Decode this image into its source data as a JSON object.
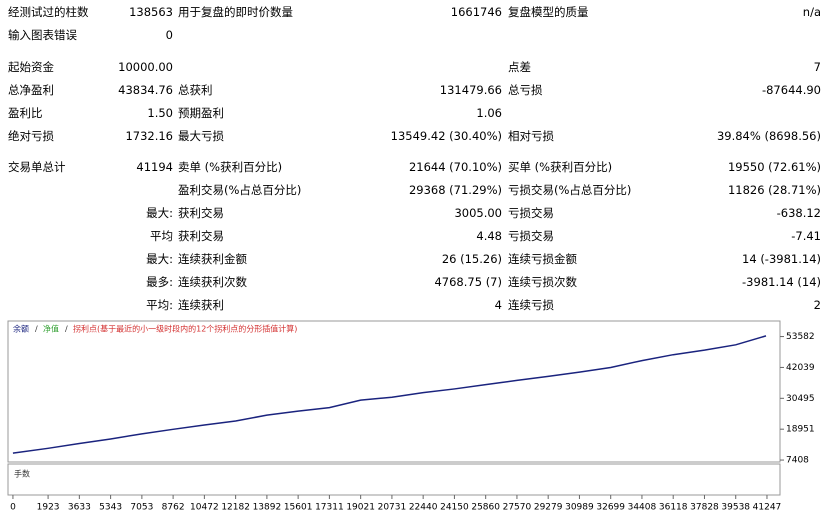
{
  "report": {
    "rows": [
      [
        "经测试过的柱数",
        "138563",
        "用于复盘的即时价数量",
        "1661746",
        "复盘模型的质量",
        "n/a"
      ],
      [
        "输入图表错误",
        "0",
        null,
        null,
        null,
        null
      ],
      [
        "起始资金",
        "10000.00",
        null,
        null,
        "点差",
        "7"
      ],
      [
        "总净盈利",
        "43834.76",
        "总获利",
        "131479.66",
        "总亏损",
        "-87644.90"
      ],
      [
        "盈利比",
        "1.50",
        "预期盈利",
        "1.06",
        null,
        null
      ],
      [
        "绝对亏损",
        "1732.16",
        "最大亏损",
        "13549.42 (30.40%)",
        "相对亏损",
        "39.84% (8698.56)"
      ],
      [
        "交易单总计",
        "41194",
        "卖单 (%获利百分比)",
        "21644 (70.10%)",
        "买单 (%获利百分比)",
        "19550 (72.61%)"
      ],
      [
        null,
        null,
        "盈利交易(%占总百分比)",
        "29368 (71.29%)",
        "亏损交易(%占总百分比)",
        "11826 (28.71%)"
      ],
      [
        null,
        "最大:",
        "获利交易",
        "3005.00",
        "亏损交易",
        "-638.12"
      ],
      [
        null,
        "平均",
        "获利交易",
        "4.48",
        "亏损交易",
        "-7.41"
      ],
      [
        null,
        "最大:",
        "连续获利金额",
        "26 (15.26)",
        "连续亏损金额",
        "14 (-3981.14)"
      ],
      [
        null,
        "最多:",
        "连续获利次数",
        "4768.75 (7)",
        "连续亏损次数",
        "-3981.14 (14)"
      ],
      [
        null,
        "平均:",
        "连续获利",
        "4",
        "连续亏损",
        "2"
      ]
    ]
  },
  "chart_data": {
    "type": "line",
    "volume_label": "手数",
    "x": [
      0,
      1923,
      3633,
      5343,
      7053,
      8762,
      10472,
      12182,
      13892,
      15601,
      17311,
      19021,
      20731,
      22440,
      24150,
      25860,
      27570,
      29279,
      30989,
      32699,
      34408,
      36118,
      37828,
      39538,
      41194
    ],
    "series": [
      {
        "name": "余额",
        "color": "#1a237e",
        "values": [
          10000,
          11800,
          13600,
          15300,
          17200,
          18900,
          20500,
          22000,
          24200,
          25700,
          27000,
          29800,
          30900,
          32600,
          34000,
          35600,
          37200,
          38700,
          40300,
          42000,
          44600,
          46800,
          48500,
          50500,
          53834
        ]
      },
      {
        "name": "净值",
        "color": "#2e9e2e",
        "values": null
      },
      {
        "name": "拐利点(基于最近的小一级时段内的12个拐利点的分形插值计算)",
        "color": "#d32f2f",
        "values": null
      }
    ],
    "xlim": [
      -270,
      41960
    ],
    "ylim": [
      6681,
      59400
    ],
    "yticks": [
      7408,
      18951,
      30495,
      42039,
      53582
    ],
    "xticks": [
      0,
      1923,
      3633,
      5343,
      7053,
      8762,
      10472,
      12182,
      13892,
      15601,
      17311,
      19021,
      20731,
      22440,
      24150,
      25860,
      27570,
      29279,
      30989,
      32699,
      34408,
      36118,
      37828,
      39538,
      41247
    ]
  }
}
